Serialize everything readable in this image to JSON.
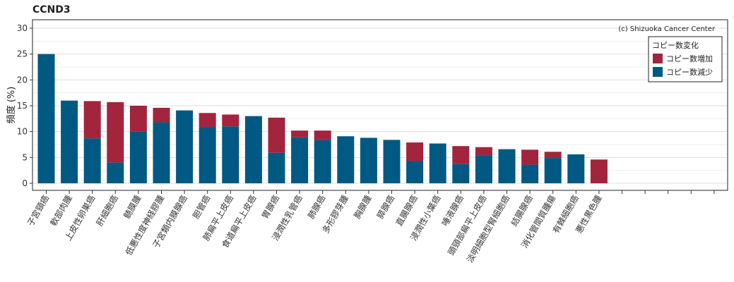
{
  "chart_data": {
    "type": "bar",
    "stacked": true,
    "title": "CCND3",
    "ylabel": "頻度 (%)",
    "xlabel": "",
    "ylim": [
      0,
      30
    ],
    "yticks": [
      0,
      5,
      10,
      15,
      20,
      25,
      30
    ],
    "grid": true,
    "copyright": "(c) Shizuoka Cancer Center",
    "legend": {
      "title": "コピー数変化",
      "position": "top-right",
      "entries": [
        {
          "label": "コピー数増加",
          "color": "#a3243d"
        },
        {
          "label": "コピー数減少",
          "color": "#005982"
        }
      ]
    },
    "categories": [
      "子宮頸癌",
      "軟部肉腫",
      "上皮性卵巣癌",
      "肝細胞癌",
      "髄膜腫",
      "低悪性度神経膠腫",
      "子宮類内膜腺癌",
      "胆管癌",
      "肺扁平上皮癌",
      "食道扁平上皮癌",
      "胃腺癌",
      "浸潤性乳管癌",
      "肺腺癌",
      "多形膠芽腫",
      "胸腺腫",
      "膵腺癌",
      "直腸腺癌",
      "浸潤性小葉癌",
      "唾液腺癌",
      "頭頸部扁平上皮癌",
      "淡明細胞型腎細胞癌",
      "結腸腺癌",
      "消化管間質腫瘍",
      "有棘細胞癌",
      "悪性黒色腫"
    ],
    "extra_slots": 5,
    "series": [
      {
        "name": "コピー数減少",
        "color": "#005982",
        "values": [
          25.0,
          16.0,
          8.7,
          4.0,
          10.0,
          11.8,
          14.1,
          10.9,
          11.0,
          13.0,
          5.9,
          8.9,
          8.4,
          9.1,
          8.8,
          8.4,
          4.3,
          7.7,
          3.7,
          5.4,
          6.6,
          3.6,
          4.9,
          5.6,
          0.0
        ]
      },
      {
        "name": "コピー数増加",
        "color": "#a3243d",
        "values": [
          0.0,
          0.0,
          7.2,
          11.7,
          5.0,
          2.8,
          0.0,
          2.7,
          2.3,
          0.0,
          6.8,
          1.3,
          1.8,
          0.0,
          0.0,
          0.0,
          3.6,
          0.0,
          3.5,
          1.6,
          0.0,
          2.9,
          1.2,
          0.0,
          4.6
        ]
      }
    ]
  }
}
